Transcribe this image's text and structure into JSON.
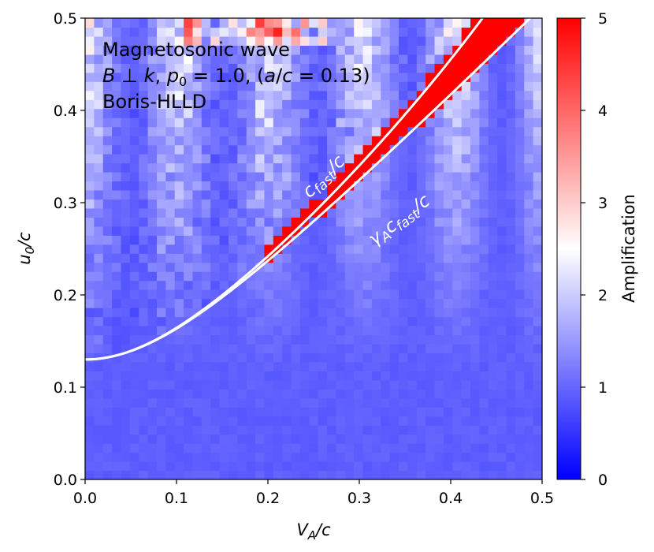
{
  "chart_data": {
    "type": "heatmap",
    "title": "",
    "xlabel": "V_A/c",
    "ylabel": "u_0/c",
    "xlim": [
      0.0,
      0.5
    ],
    "ylim": [
      0.0,
      0.5
    ],
    "xticks": [
      "0.0",
      "0.1",
      "0.2",
      "0.3",
      "0.4",
      "0.5"
    ],
    "yticks": [
      "0.0",
      "0.1",
      "0.2",
      "0.3",
      "0.4",
      "0.5"
    ],
    "colorbar": {
      "label": "Amplification",
      "range": [
        0,
        5
      ],
      "ticks": [
        "0",
        "1",
        "2",
        "3",
        "4",
        "5"
      ],
      "colors": [
        "#0000ff",
        "#ffffff",
        "#ff0000"
      ]
    },
    "annotations": [
      "Magnetosonic wave",
      "B ⊥ k, p_0 = 1.0, (a/c = 0.13)",
      "Boris-HLLD"
    ],
    "curves": [
      {
        "name": "c_fast/c",
        "a": 0.13,
        "type": "fast"
      },
      {
        "name": "γ_A c_fast/c",
        "a": 0.13,
        "type": "gamma_fast"
      }
    ],
    "curve_labels": {
      "fast": [
        "c",
        "fast",
        "/c"
      ],
      "gamma_fast": [
        "γ",
        "A",
        "c",
        "fast",
        "/c"
      ]
    },
    "grid": false
  },
  "text": {
    "anno_line1": "Magnetosonic wave",
    "anno_line2_parts": [
      "B",
      " ⊥ ",
      "k",
      ", ",
      "p",
      "0",
      " = 1.0, (",
      "a",
      "/",
      "c",
      " = 0.13)"
    ],
    "anno_line3": "Boris-HLLD",
    "xlabel_parts": [
      "V",
      "A",
      "/c"
    ],
    "ylabel_parts": [
      "u",
      "0",
      "/c"
    ]
  }
}
